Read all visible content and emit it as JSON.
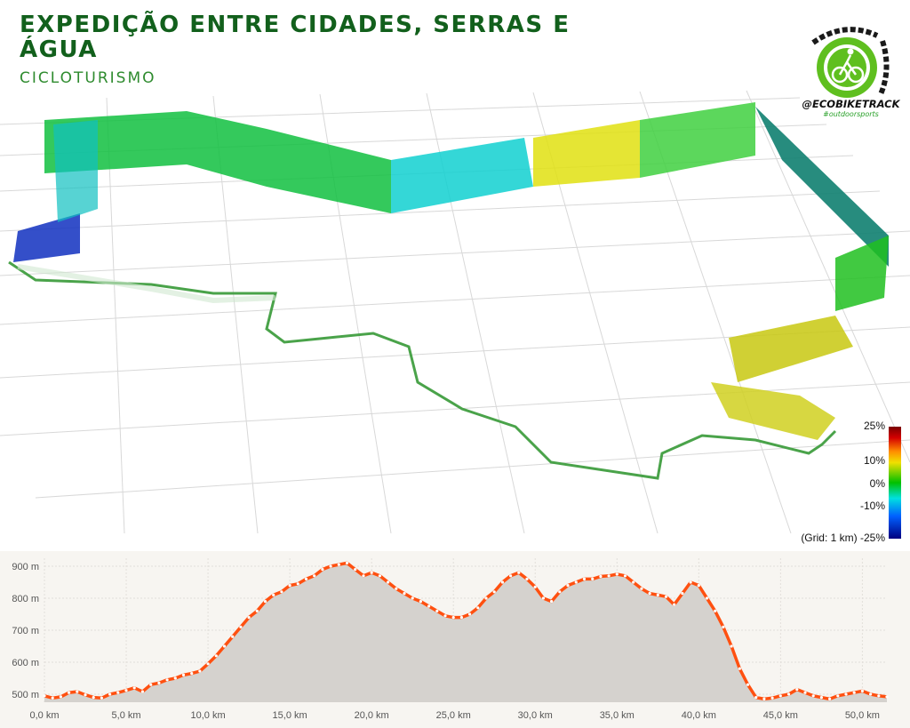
{
  "header": {
    "title": "EXPEDIÇÃO ENTRE CIDADES, SERRAS E ÁGUA",
    "subtitle": "CICLOTURISMO"
  },
  "logo": {
    "handle": "@ECOBIKETRACK",
    "tag": "#outdoorsports",
    "colors": {
      "gear": "#5fbf1f",
      "chain": "#1a1a1a",
      "cyclist": "#ffffff"
    }
  },
  "legend": {
    "ticks": [
      "25%",
      "10%",
      "0%",
      "-10%",
      "(Grid: 1 km) -25%"
    ],
    "colors": [
      "#7a0000",
      "#d40000",
      "#ff8c00",
      "#f0e000",
      "#00c000",
      "#00e0e0",
      "#0060ff",
      "#000080"
    ]
  },
  "chart_data": {
    "type": "area",
    "xlabel": "",
    "ylabel": "",
    "xlim": [
      0,
      51.5
    ],
    "ylim": [
      475,
      925
    ],
    "x_ticks": [
      "0,0 km",
      "5,0 km",
      "10,0 km",
      "15,0 km",
      "20,0 km",
      "25,0 km",
      "30,0 km",
      "35,0 km",
      "40,0 km",
      "45,0 km",
      "50,0 km"
    ],
    "x_tick_values": [
      0,
      5,
      10,
      15,
      20,
      25,
      30,
      35,
      40,
      45,
      50
    ],
    "y_ticks": [
      "500 m",
      "600 m",
      "700 m",
      "800 m",
      "900 m"
    ],
    "y_tick_values": [
      500,
      600,
      700,
      800,
      900
    ],
    "grid": true,
    "fill_color": "#d5d2ce",
    "line_color": "#ff5010",
    "series": [
      {
        "x": [
          0,
          0.5,
          1,
          1.5,
          2,
          2.5,
          3,
          3.5,
          4,
          4.5,
          5,
          5.5,
          6,
          6.5,
          7,
          7.5,
          8,
          8.5,
          9,
          9.5,
          10,
          10.5,
          11,
          11.5,
          12,
          12.5,
          13,
          13.5,
          14,
          14.5,
          15,
          15.5,
          16,
          16.5,
          17,
          17.5,
          18,
          18.5,
          19,
          19.5,
          20,
          20.5,
          21,
          21.5,
          22,
          22.5,
          23,
          23.5,
          24,
          24.5,
          25,
          25.5,
          26,
          26.5,
          27,
          27.5,
          28,
          28.5,
          29,
          29.5,
          30,
          30.5,
          31,
          31.5,
          32,
          32.5,
          33,
          33.5,
          34,
          34.5,
          35,
          35.5,
          36,
          36.5,
          37,
          37.5,
          38,
          38.5,
          39,
          39.5,
          40,
          40.5,
          41,
          41.5,
          42,
          42.5,
          43,
          43.5,
          44,
          44.5,
          45,
          45.5,
          46,
          46.5,
          47,
          47.5,
          48,
          48.5,
          49,
          49.5,
          50,
          50.5,
          51,
          51.5
        ],
        "values": [
          495,
          488,
          492,
          505,
          508,
          498,
          490,
          488,
          500,
          505,
          512,
          520,
          508,
          530,
          535,
          545,
          550,
          560,
          565,
          572,
          595,
          620,
          650,
          680,
          710,
          740,
          760,
          790,
          810,
          820,
          840,
          845,
          860,
          870,
          890,
          900,
          905,
          910,
          890,
          870,
          880,
          870,
          850,
          830,
          815,
          800,
          790,
          775,
          760,
          745,
          740,
          740,
          750,
          770,
          800,
          820,
          850,
          870,
          880,
          860,
          835,
          800,
          790,
          820,
          840,
          850,
          860,
          860,
          868,
          870,
          875,
          870,
          850,
          830,
          815,
          810,
          805,
          780,
          815,
          850,
          840,
          800,
          760,
          710,
          650,
          580,
          530,
          490,
          485,
          488,
          495,
          500,
          515,
          505,
          495,
          490,
          485,
          495,
          500,
          505,
          510,
          500,
          495,
          492
        ]
      }
    ]
  }
}
